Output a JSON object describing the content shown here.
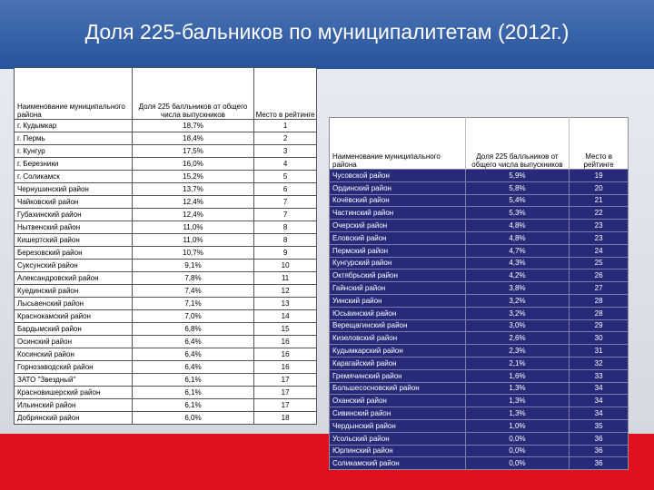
{
  "title": "Доля 225-бальников по муниципалитетам (2012г.)",
  "left_table": {
    "headers": [
      "Наименование муниципального района",
      "Доля 225 балльников от общего числа выпускников",
      "Место в рейтинге"
    ],
    "rows": [
      [
        "г. Кудымкар",
        "18,7%",
        "1"
      ],
      [
        "г. Пермь",
        "18,4%",
        "2"
      ],
      [
        "г. Кунгур",
        "17,5%",
        "3"
      ],
      [
        "г. Березники",
        "16,0%",
        "4"
      ],
      [
        "г. Соликамск",
        "15,2%",
        "5"
      ],
      [
        "Чернушинский район",
        "13,7%",
        "6"
      ],
      [
        "Чайковский район",
        "12,4%",
        "7"
      ],
      [
        "Губахинский район",
        "12,4%",
        "7"
      ],
      [
        "Нытвенский район",
        "11,0%",
        "8"
      ],
      [
        "Кишертский район",
        "11,0%",
        "8"
      ],
      [
        "Березовский район",
        "10,7%",
        "9"
      ],
      [
        "Суксунский район",
        "9,1%",
        "10"
      ],
      [
        "Александровский район",
        "7,8%",
        "11"
      ],
      [
        "Куединский район",
        "7,4%",
        "12"
      ],
      [
        "Лысьвенский район",
        "7,1%",
        "13"
      ],
      [
        "Краснокамский район",
        "7,0%",
        "14"
      ],
      [
        "Бардымский район",
        "6,8%",
        "15"
      ],
      [
        "Осинский район",
        "6,4%",
        "16"
      ],
      [
        "Косинский район",
        "6,4%",
        "16"
      ],
      [
        "Горнозаводский район",
        "6,4%",
        "16"
      ],
      [
        "ЗАТО \"Звездный\"",
        "6,1%",
        "17"
      ],
      [
        "Красновишерский район",
        "6,1%",
        "17"
      ],
      [
        "Ильинский район",
        "6,1%",
        "17"
      ],
      [
        "Добрянский район",
        "6,0%",
        "18"
      ]
    ]
  },
  "right_table": {
    "headers": [
      "Наименование муниципального района",
      "Доля 225 балльников от общего числа выпускников",
      "Место в рейтинге"
    ],
    "rows": [
      [
        "Чусовской район",
        "5,9%",
        "19"
      ],
      [
        "Ординский район",
        "5,8%",
        "20"
      ],
      [
        "Кочёвский район",
        "5,4%",
        "21"
      ],
      [
        "Частинский район",
        "5,3%",
        "22"
      ],
      [
        "Очерский район",
        "4,8%",
        "23"
      ],
      [
        "Еловский район",
        "4,8%",
        "23"
      ],
      [
        "Пермский район",
        "4,7%",
        "24"
      ],
      [
        "Кунгурский район",
        "4,3%",
        "25"
      ],
      [
        "Октябрьский район",
        "4,2%",
        "26"
      ],
      [
        "Гайнский район",
        "3,8%",
        "27"
      ],
      [
        "Уинский район",
        "3,2%",
        "28"
      ],
      [
        "Юсьвинский район",
        "3,2%",
        "28"
      ],
      [
        "Верещагинский район",
        "3,0%",
        "29"
      ],
      [
        "Кизеловский район",
        "2,6%",
        "30"
      ],
      [
        "Кудымкарский район",
        "2,3%",
        "31"
      ],
      [
        "Карагайский район",
        "2,1%",
        "32"
      ],
      [
        "Гремячинский район",
        "1,6%",
        "33"
      ],
      [
        "Большесосновский район",
        "1,3%",
        "34"
      ],
      [
        "Оханский район",
        "1,3%",
        "34"
      ],
      [
        "Сивинский район",
        "1,3%",
        "34"
      ],
      [
        "Чердынский район",
        "1,0%",
        "35"
      ],
      [
        "Усольский район",
        "0,0%",
        "36"
      ],
      [
        "Юрлинский район",
        "0,0%",
        "36"
      ],
      [
        "Соликамский район",
        "0,0%",
        "36"
      ]
    ]
  }
}
